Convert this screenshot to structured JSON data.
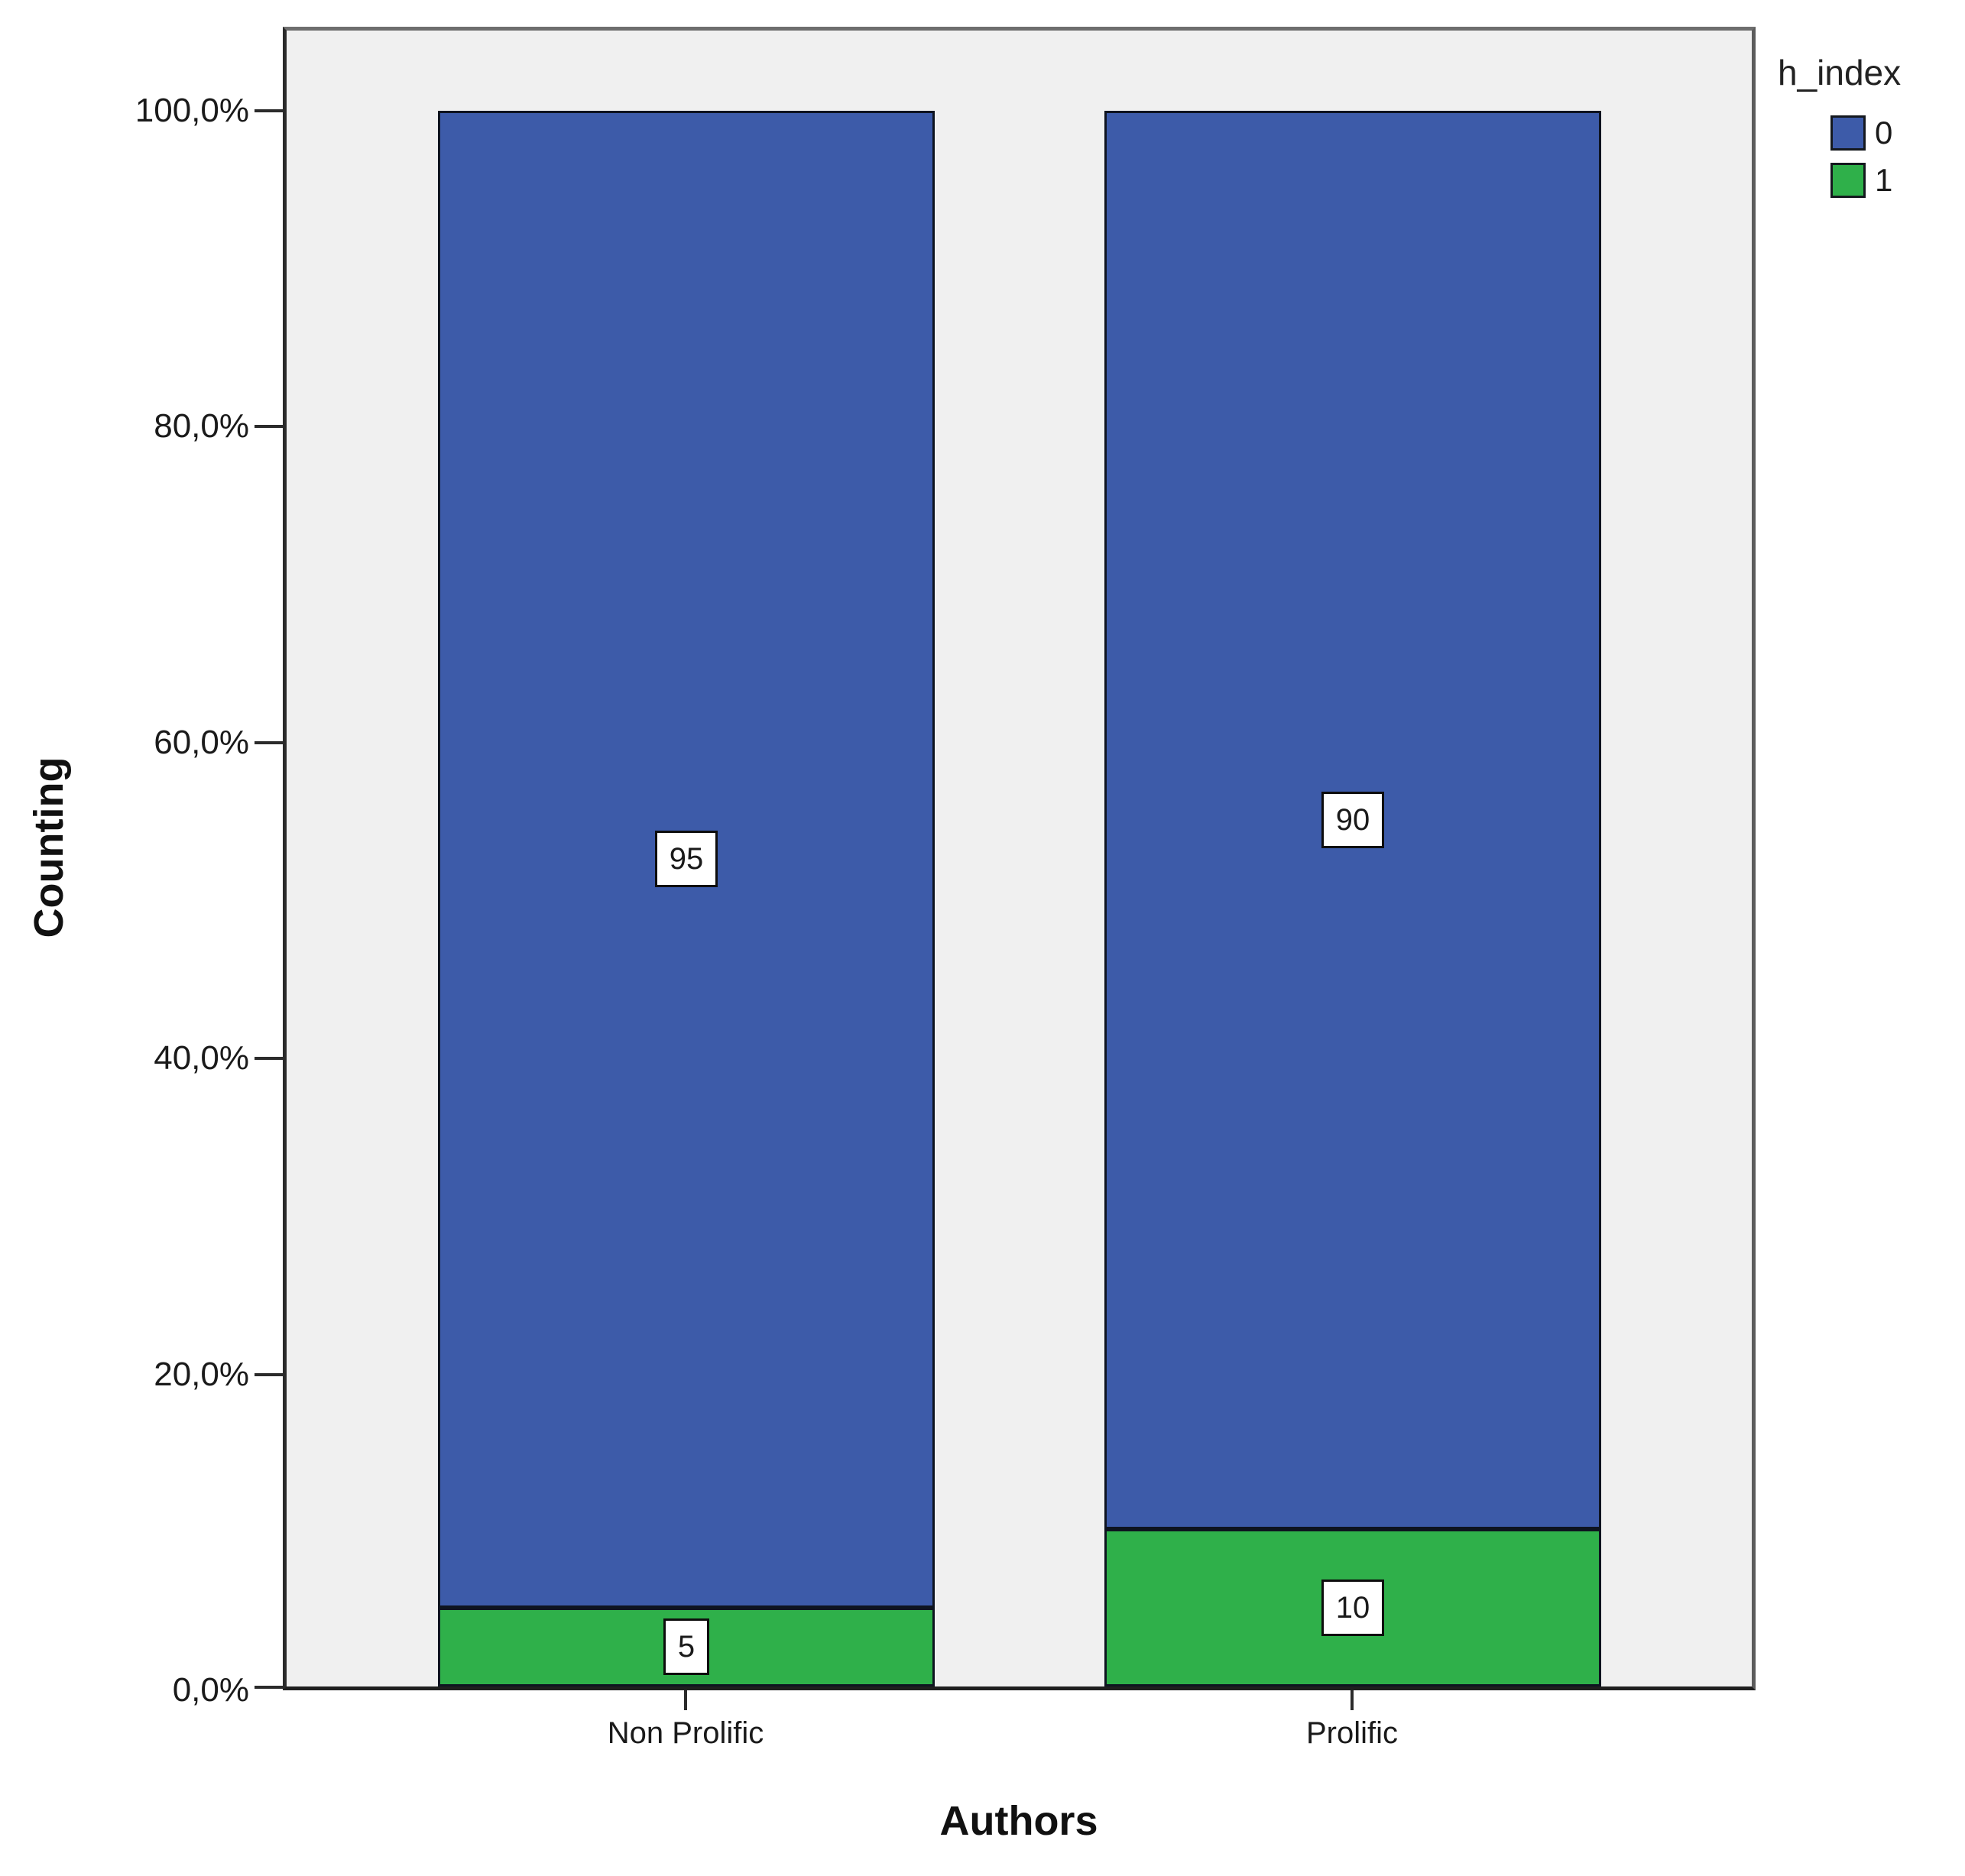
{
  "chart_data": {
    "type": "bar",
    "subtype": "stacked-100-percent",
    "title": "",
    "xlabel": "Authors",
    "ylabel": "Counting",
    "categories": [
      "Non Prolific",
      "Prolific"
    ],
    "series": [
      {
        "name": "0",
        "color": "#3D5BA9",
        "values": [
          95,
          90
        ]
      },
      {
        "name": "1",
        "color": "#2FB04A",
        "values": [
          5,
          10
        ]
      }
    ],
    "ylim": [
      0,
      100
    ],
    "ytick_labels_top_to_bottom": [
      "100,0%",
      "80,0%",
      "60,0%",
      "40,0%",
      "20,0%",
      "0,0%"
    ],
    "grid": false,
    "legend": {
      "title": "h_index",
      "position": "top-right"
    },
    "plot_background": "#f0f0f0",
    "decimal_separator": ","
  }
}
